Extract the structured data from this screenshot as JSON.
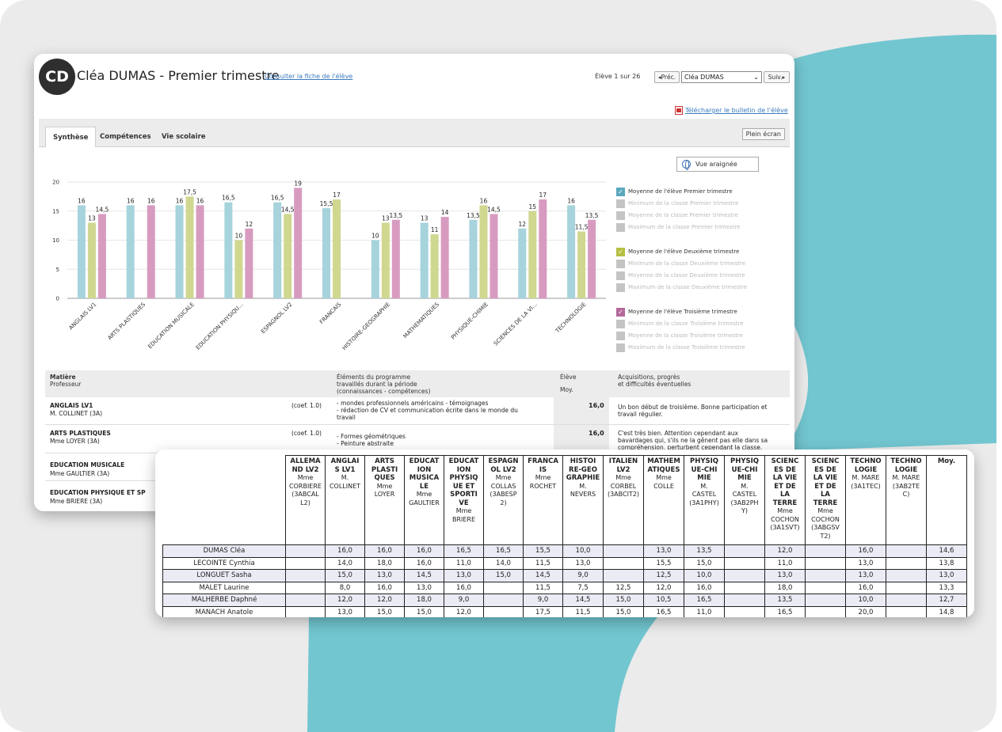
{
  "window": {
    "avatar_initials": "CD",
    "title": "Cléa DUMAS - Premier trimestre",
    "fiche_link": "Consulter la fiche de l'élève",
    "eleve_count": "Élève 1 sur 26",
    "prev_label": "◂Préc.",
    "select_value": "Cléa DUMAS",
    "next_label": "Suiv.▸",
    "download_link": "Télécharger le bulletin de l'élève",
    "fullscreen_label": "Plein écran",
    "vue_araignee_label": "Vue araignée"
  },
  "tabs": [
    {
      "label": "Synthèse",
      "active": true
    },
    {
      "label": "Compétences",
      "active": false
    },
    {
      "label": "Vie scolaire",
      "active": false
    }
  ],
  "chart_data": {
    "type": "bar",
    "categories": [
      "ANGLAIS LV1",
      "ARTS PLASTIQUES",
      "EDUCATION MUSICALE",
      "EDUCATION PHYSIQU...",
      "ESPAGNOL LV2",
      "FRANCAIS",
      "HISTOIRE-GEOGRAPHIE",
      "MATHEMATIQUES",
      "PHYSIQUE-CHIMIE",
      "SCIENCES DE LA VI...",
      "TECHNOLOGIE"
    ],
    "series": [
      {
        "name": "Moyenne de l'élève Premier trimestre",
        "color": "#a6d3dc",
        "values": [
          16,
          16,
          16,
          16.5,
          16.5,
          15.5,
          10,
          13,
          13.5,
          12,
          16
        ]
      },
      {
        "name": "Moyenne de l'élève Deuxième trimestre",
        "color": "#d0d78f",
        "values": [
          13,
          null,
          17.5,
          10,
          14.5,
          17,
          13,
          11,
          16,
          15,
          11.5
        ]
      },
      {
        "name": "Moyenne de l'élève Troisième trimestre",
        "color": "#d89bc0",
        "values": [
          14.5,
          16,
          16,
          12,
          19,
          null,
          13.5,
          14,
          14.5,
          17,
          13.5
        ]
      }
    ],
    "labels": [
      [
        "16",
        "13",
        "14,5"
      ],
      [
        "16",
        "",
        "16"
      ],
      [
        "16",
        "17,5",
        "16"
      ],
      [
        "16,5",
        "10",
        "12"
      ],
      [
        "16,5",
        "14,5",
        "19"
      ],
      [
        "15,5",
        "17",
        ""
      ],
      [
        "10",
        "13",
        "13,5"
      ],
      [
        "13",
        "11",
        "14"
      ],
      [
        "13,5",
        "16",
        "14,5"
      ],
      [
        "12",
        "15",
        "17"
      ],
      [
        "16",
        "11,5",
        "13,5"
      ]
    ],
    "yticks": [
      "0",
      "5",
      "10",
      "15",
      "20"
    ],
    "ylim": [
      0,
      20
    ]
  },
  "legend": [
    {
      "label": "Moyenne de l'élève Premier trimestre",
      "checked": true,
      "color": "#5aa8bd"
    },
    {
      "label": "Minimum de la classe Premier trimestre",
      "checked": false
    },
    {
      "label": "Moyenne de la classe Premier trimestre",
      "checked": false
    },
    {
      "label": "Maximum de la classe Premier trimestre",
      "checked": false
    },
    {
      "label": "Moyenne de l'élève Deuxième trimestre",
      "checked": true,
      "color": "#b5c043"
    },
    {
      "label": "Minimum de la classe Deuxième trimestre",
      "checked": false
    },
    {
      "label": "Moyenne de la classe Deuxième trimestre",
      "checked": false
    },
    {
      "label": "Maximum de la classe Deuxième trimestre",
      "checked": false
    },
    {
      "label": "Moyenne de l'élève Troisième trimestre",
      "checked": true,
      "color": "#b5689a"
    },
    {
      "label": "Minimum de la classe Troisième trimestre",
      "checked": false
    },
    {
      "label": "Moyenne de la classe Troisième trimestre",
      "checked": false
    },
    {
      "label": "Maximum de la classe Troisième trimestre",
      "checked": false
    }
  ],
  "synth_header": {
    "col1a": "Matière",
    "col1b": "Professeur",
    "col2a": "Éléments du programme",
    "col2b": "travaillés durant la période",
    "col2c": "(connaissances - compétences)",
    "col3a": "Élève",
    "col3b": "Moy.",
    "col4a": "Acquisitions, progrès",
    "col4b": "et difficultés éventuelles"
  },
  "synth_rows": [
    {
      "subject": "ANGLAIS LV1",
      "prof": "M. COLLINET (3A)",
      "coef": "(coef. 1.0)",
      "elements": [
        "- mondes professionnels américains - témoignages",
        "- rédaction de CV et communication écrite dans le monde du",
        "travail"
      ],
      "moy": "16,0",
      "comment": [
        "Un bon début de troisième. Bonne participation et",
        "travail régulier."
      ]
    },
    {
      "subject": "ARTS PLASTIQUES",
      "prof": "Mme LOYER (3A)",
      "coef": "(coef. 1.0)",
      "elements": [
        "- Formes géométriques",
        "- Peinture abstraite"
      ],
      "moy": "16,0",
      "comment": [
        "C'est très bien. Attention cependant aux",
        "bavardages qui, s'ils ne la gênent pas elle dans sa",
        "compréhension, perturbent cependant la classe."
      ]
    },
    {
      "subject": "EDUCATION MUSICALE",
      "prof": "Mme GAULTIER (3A)"
    },
    {
      "subject": "EDUCATION PHYSIQUE ET SP",
      "prof": "Mme BRIERE (3A)"
    }
  ],
  "grid": {
    "columns": [
      {
        "title": [
          "ALLEMA",
          "ND LV2"
        ],
        "info": [
          "Mme",
          "CORBIERE",
          "(3ABCAL",
          "L2)"
        ]
      },
      {
        "title": [
          "ANGLAI",
          "S LV1"
        ],
        "info": [
          "M.",
          "COLLINET"
        ]
      },
      {
        "title": [
          "ARTS",
          "PLASTI",
          "QUES"
        ],
        "info": [
          "Mme",
          "LOYER"
        ]
      },
      {
        "title": [
          "EDUCAT",
          "ION",
          "MUSICA",
          "LE"
        ],
        "info": [
          "Mme",
          "GAULTIER"
        ]
      },
      {
        "title": [
          "EDUCAT",
          "ION",
          "PHYSIQ",
          "UE ET",
          "SPORTI",
          "VE"
        ],
        "info": [
          "Mme",
          "BRIERE"
        ]
      },
      {
        "title": [
          "ESPAGN",
          "OL LV2"
        ],
        "info": [
          "Mme",
          "COLLAS",
          "(3ABESP",
          "2)"
        ]
      },
      {
        "title": [
          "FRANCA",
          "IS"
        ],
        "info": [
          "Mme",
          "ROCHET"
        ]
      },
      {
        "title": [
          "HISTOI",
          "RE-GEO",
          "GRAPHIE"
        ],
        "info": [
          "M.",
          "NEVERS"
        ]
      },
      {
        "title": [
          "ITALIEN",
          "LV2"
        ],
        "info": [
          "Mme",
          "CORBEL",
          "(3ABCIT2)"
        ]
      },
      {
        "title": [
          "MATHEM",
          "ATIQUES"
        ],
        "info": [
          "Mme",
          "COLLE"
        ]
      },
      {
        "title": [
          "PHYSIQ",
          "UE-CHI",
          "MIE"
        ],
        "info": [
          "M.",
          "CASTEL",
          "(3A1PHY)"
        ]
      },
      {
        "title": [
          "PHYSIQ",
          "UE-CHI",
          "MIE"
        ],
        "info": [
          "M.",
          "CASTEL",
          "(3AB2PH",
          "Y)"
        ]
      },
      {
        "title": [
          "SCIENC",
          "ES DE",
          "LA VIE",
          "ET DE",
          "LA",
          "TERRE"
        ],
        "info": [
          "Mme",
          "COCHON",
          "(3A1SVT)"
        ]
      },
      {
        "title": [
          "SCIENC",
          "ES DE",
          "LA VIE",
          "ET DE",
          "LA",
          "TERRE"
        ],
        "info": [
          "Mme",
          "COCHON",
          "(3ABGSV",
          "T2)"
        ]
      },
      {
        "title": [
          "TECHNO",
          "LOGIE"
        ],
        "info": [
          "M. MARE",
          "(3A1TEC)"
        ]
      },
      {
        "title": [
          "TECHNO",
          "LOGIE"
        ],
        "info": [
          "M. MARE",
          "(3AB2TE",
          "C)"
        ]
      },
      {
        "title": [
          "Moy."
        ],
        "info": []
      }
    ],
    "rows": [
      {
        "name": "DUMAS Cléa",
        "values": [
          "",
          "16,0",
          "16,0",
          "16,0",
          "16,5",
          "16,5",
          "15,5",
          "10,0",
          "",
          "13,0",
          "13,5",
          "",
          "12,0",
          "",
          "16,0",
          "",
          "14,6"
        ]
      },
      {
        "name": "LECOINTE Cynthia",
        "values": [
          "",
          "14,0",
          "18,0",
          "16,0",
          "11,0",
          "14,0",
          "11,5",
          "13,0",
          "",
          "15,5",
          "15,0",
          "",
          "11,0",
          "",
          "13,0",
          "",
          "13,8"
        ]
      },
      {
        "name": "LONGUET Sasha",
        "values": [
          "",
          "15,0",
          "13,0",
          "14,5",
          "13,0",
          "15,0",
          "14,5",
          "9,0",
          "",
          "12,5",
          "10,0",
          "",
          "13,0",
          "",
          "13,0",
          "",
          "13,0"
        ]
      },
      {
        "name": "MALET Laurine",
        "values": [
          "",
          "8,0",
          "16,0",
          "13,0",
          "16,0",
          "",
          "11,5",
          "7,5",
          "12,5",
          "12,0",
          "16,0",
          "",
          "18,0",
          "",
          "16,0",
          "",
          "13,3"
        ]
      },
      {
        "name": "MALHERBE Daphné",
        "values": [
          "",
          "12,0",
          "12,0",
          "18,0",
          "9,0",
          "",
          "9,0",
          "14,5",
          "15,0",
          "10,5",
          "16,5",
          "",
          "13,5",
          "",
          "10,0",
          "",
          "12,7"
        ]
      },
      {
        "name": "MANACH Anatole",
        "values": [
          "",
          "13,0",
          "15,0",
          "15,0",
          "12,0",
          "",
          "17,5",
          "11,5",
          "15,0",
          "16,5",
          "11,0",
          "",
          "16,5",
          "",
          "20,0",
          "",
          "14,8"
        ]
      }
    ]
  },
  "colors": {
    "accent_teal": "#72c6d0",
    "link": "#3a7abf",
    "background": "#ebebeb"
  }
}
